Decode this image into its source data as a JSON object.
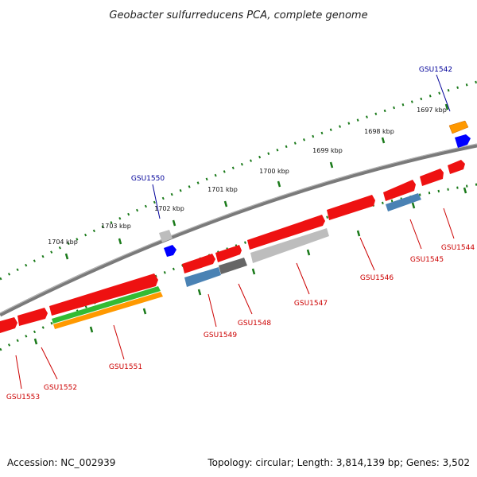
{
  "title": "Geobacter sulfurreducens PCA, complete genome",
  "footer": {
    "accession": "Accession: NC_002939",
    "summary": "Topology: circular; Length: 3,814,139 bp; Genes: 3,502"
  },
  "scale_labels": [
    "1697 kbp",
    "1698 kbp",
    "1699 kbp",
    "1700 kbp",
    "1701 kbp",
    "1702 kbp",
    "1703 kbp",
    "1704 kbp"
  ],
  "genes": {
    "GSU1542": "GSU1542",
    "GSU1544": "GSU1544",
    "GSU1545": "GSU1545",
    "GSU1546": "GSU1546",
    "GSU1547": "GSU1547",
    "GSU1548": "GSU1548",
    "GSU1549": "GSU1549",
    "GSU1550": "GSU1550",
    "GSU1551": "GSU1551",
    "GSU1552": "GSU1552",
    "GSU1553": "GSU1553"
  },
  "colors": {
    "backbone": "#7a7a7a",
    "scale_ticks": "#1a7a1a",
    "cds_red": "#ee1111",
    "steelblue": "#4a82b4",
    "darkgray": "#666666",
    "lightgray": "#bdbdbd",
    "green": "#33bb33",
    "orange": "#ff9900",
    "blue": "#0000ff",
    "label_red": "#cc0000",
    "label_blue": "#000099"
  }
}
